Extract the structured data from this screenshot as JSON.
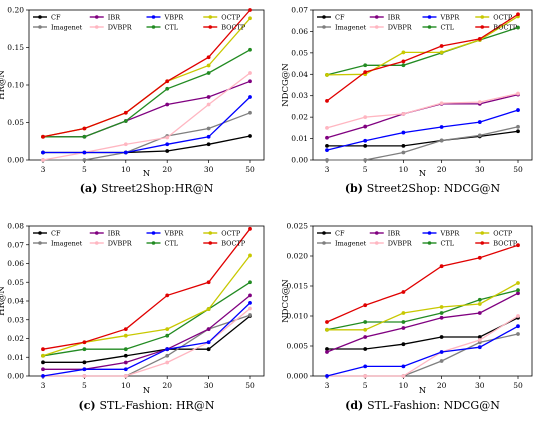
{
  "chart_data": [
    {
      "type": "line",
      "caption_letter": "(a)",
      "caption_text": "Street2Shop:HR@N",
      "xlabel": "N",
      "ylabel": "HR@N",
      "categories": [
        "3",
        "5",
        "10",
        "20",
        "30",
        "50"
      ],
      "ylim": [
        0,
        0.2
      ],
      "yticks": [
        0,
        0.05,
        0.1,
        0.15,
        0.2
      ],
      "ytick_labels": [
        "0.00",
        "0.05",
        "0.10",
        "0.15",
        "0.20"
      ],
      "legend": {
        "placement": "top-left",
        "columns": 4
      },
      "series": [
        {
          "name": "CF",
          "color": "#000000",
          "values": [
            0.01,
            0.01,
            0.01,
            0.012,
            0.021,
            0.032
          ]
        },
        {
          "name": "Imagenet",
          "color": "#7f7f7f",
          "values": [
            0.0,
            0.0,
            0.01,
            0.032,
            0.042,
            0.063
          ]
        },
        {
          "name": "IBR",
          "color": "#800080",
          "values": [
            0.031,
            0.031,
            0.052,
            0.074,
            0.084,
            0.105
          ]
        },
        {
          "name": "DVBPR",
          "color": "#ffb6c1",
          "values": [
            0.0,
            0.01,
            0.021,
            0.03,
            0.074,
            0.116
          ]
        },
        {
          "name": "VBPR",
          "color": "#0000ff",
          "values": [
            0.01,
            0.01,
            0.01,
            0.021,
            0.031,
            0.084
          ]
        },
        {
          "name": "CTL",
          "color": "#228b22",
          "values": [
            0.031,
            0.031,
            0.052,
            0.095,
            0.116,
            0.147
          ]
        },
        {
          "name": "OCTP",
          "color": "#c8c800",
          "values": [
            0.031,
            0.042,
            0.063,
            0.105,
            0.126,
            0.189
          ]
        },
        {
          "name": "BOCTP",
          "color": "#e00000",
          "values": [
            0.031,
            0.042,
            0.063,
            0.105,
            0.137,
            0.2
          ]
        }
      ]
    },
    {
      "type": "line",
      "caption_letter": "(b)",
      "caption_text": "Street2Shop: NDCG@N",
      "xlabel": "N",
      "ylabel": "NDCG@N",
      "categories": [
        "3",
        "5",
        "10",
        "20",
        "30",
        "50"
      ],
      "ylim": [
        0,
        0.07
      ],
      "yticks": [
        0,
        0.01,
        0.02,
        0.03,
        0.04,
        0.05,
        0.06,
        0.07
      ],
      "ytick_labels": [
        "0.00",
        "0.01",
        "0.02",
        "0.03",
        "0.04",
        "0.05",
        "0.06",
        "0.07"
      ],
      "legend": {
        "placement": "top-left",
        "columns": 4
      },
      "series": [
        {
          "name": "CF",
          "color": "#000000",
          "values": [
            0.0066,
            0.0066,
            0.0066,
            0.0091,
            0.011,
            0.0134
          ]
        },
        {
          "name": "Imagenet",
          "color": "#7f7f7f",
          "values": [
            0.0,
            0.0,
            0.0035,
            0.0091,
            0.0115,
            0.0155
          ]
        },
        {
          "name": "IBR",
          "color": "#800080",
          "values": [
            0.0104,
            0.0156,
            0.0215,
            0.0262,
            0.0262,
            0.0305
          ]
        },
        {
          "name": "DVBPR",
          "color": "#ffb6c1",
          "values": [
            0.015,
            0.02,
            0.0215,
            0.0265,
            0.027,
            0.031
          ]
        },
        {
          "name": "VBPR",
          "color": "#0000ff",
          "values": [
            0.0046,
            0.009,
            0.0128,
            0.0154,
            0.0177,
            0.0233
          ]
        },
        {
          "name": "CTL",
          "color": "#228b22",
          "values": [
            0.0397,
            0.0442,
            0.0442,
            0.05,
            0.056,
            0.0618
          ]
        },
        {
          "name": "OCTP",
          "color": "#c8c800",
          "values": [
            0.0397,
            0.04,
            0.0502,
            0.0502,
            0.056,
            0.067
          ]
        },
        {
          "name": "BOCTP",
          "color": "#e00000",
          "values": [
            0.0276,
            0.041,
            0.046,
            0.0532,
            0.0565,
            0.068
          ]
        }
      ]
    },
    {
      "type": "line",
      "caption_letter": "(c)",
      "caption_text": "STL-Fashion: HR@N",
      "xlabel": "N",
      "ylabel": "HR@N",
      "categories": [
        "3",
        "5",
        "10",
        "20",
        "30",
        "50"
      ],
      "ylim": [
        0,
        0.08
      ],
      "yticks": [
        0,
        0.01,
        0.02,
        0.03,
        0.04,
        0.05,
        0.06,
        0.07,
        0.08
      ],
      "ytick_labels": [
        "0.00",
        "0.01",
        "0.02",
        "0.03",
        "0.04",
        "0.05",
        "0.06",
        "0.07",
        "0.08"
      ],
      "legend": {
        "placement": "top-left",
        "columns": 4
      },
      "series": [
        {
          "name": "CF",
          "color": "#000000",
          "values": [
            0.0073,
            0.0073,
            0.0108,
            0.0143,
            0.0143,
            0.032
          ]
        },
        {
          "name": "Imagenet",
          "color": "#7f7f7f",
          "values": [
            0.0,
            0.0,
            0.0,
            0.0108,
            0.025,
            0.0325
          ]
        },
        {
          "name": "IBR",
          "color": "#800080",
          "values": [
            0.0036,
            0.0036,
            0.0072,
            0.0143,
            0.025,
            0.043
          ]
        },
        {
          "name": "DVBPR",
          "color": "#ffb6c1",
          "values": [
            0.0,
            0.0,
            0.0,
            0.0072,
            0.018,
            0.036
          ]
        },
        {
          "name": "VBPR",
          "color": "#0000ff",
          "values": [
            0.0,
            0.0036,
            0.0036,
            0.0143,
            0.018,
            0.039
          ]
        },
        {
          "name": "CTL",
          "color": "#228b22",
          "values": [
            0.0108,
            0.0143,
            0.0143,
            0.0215,
            0.0357,
            0.05
          ]
        },
        {
          "name": "OCTP",
          "color": "#c8c800",
          "values": [
            0.0108,
            0.018,
            0.0215,
            0.025,
            0.0357,
            0.0643
          ]
        },
        {
          "name": "BOCTP",
          "color": "#e00000",
          "values": [
            0.0143,
            0.018,
            0.025,
            0.043,
            0.05,
            0.0785
          ]
        }
      ]
    },
    {
      "type": "line",
      "caption_letter": "(d)",
      "caption_text": "STL-Fashion: NDCG@N",
      "xlabel": "N",
      "ylabel": "NDCG@N",
      "categories": [
        "3",
        "5",
        "10",
        "20",
        "30",
        "50"
      ],
      "ylim": [
        0,
        0.025
      ],
      "yticks": [
        0,
        0.005,
        0.01,
        0.015,
        0.02,
        0.025
      ],
      "ytick_labels": [
        "0.000",
        "0.005",
        "0.010",
        "0.015",
        "0.020",
        "0.025"
      ],
      "legend": {
        "placement": "top-left",
        "columns": 4
      },
      "series": [
        {
          "name": "CF",
          "color": "#000000",
          "values": [
            0.0045,
            0.0045,
            0.0053,
            0.0065,
            0.0065,
            0.0097
          ]
        },
        {
          "name": "Imagenet",
          "color": "#7f7f7f",
          "values": [
            0.0,
            0.0,
            0.0,
            0.0025,
            0.0056,
            0.007
          ]
        },
        {
          "name": "IBR",
          "color": "#800080",
          "values": [
            0.004,
            0.0065,
            0.008,
            0.0097,
            0.0105,
            0.0138
          ]
        },
        {
          "name": "DVBPR",
          "color": "#ffb6c1",
          "values": [
            0.0,
            0.0,
            0.0,
            0.004,
            0.006,
            0.01
          ]
        },
        {
          "name": "VBPR",
          "color": "#0000ff",
          "values": [
            0.0,
            0.0016,
            0.0016,
            0.004,
            0.0048,
            0.0083
          ]
        },
        {
          "name": "CTL",
          "color": "#228b22",
          "values": [
            0.0077,
            0.009,
            0.009,
            0.0105,
            0.0127,
            0.0143
          ]
        },
        {
          "name": "OCTP",
          "color": "#c8c800",
          "values": [
            0.0077,
            0.0077,
            0.0105,
            0.0115,
            0.012,
            0.0155
          ]
        },
        {
          "name": "BOCTP",
          "color": "#e00000",
          "values": [
            0.009,
            0.0118,
            0.014,
            0.0183,
            0.0197,
            0.0218
          ]
        }
      ]
    }
  ]
}
